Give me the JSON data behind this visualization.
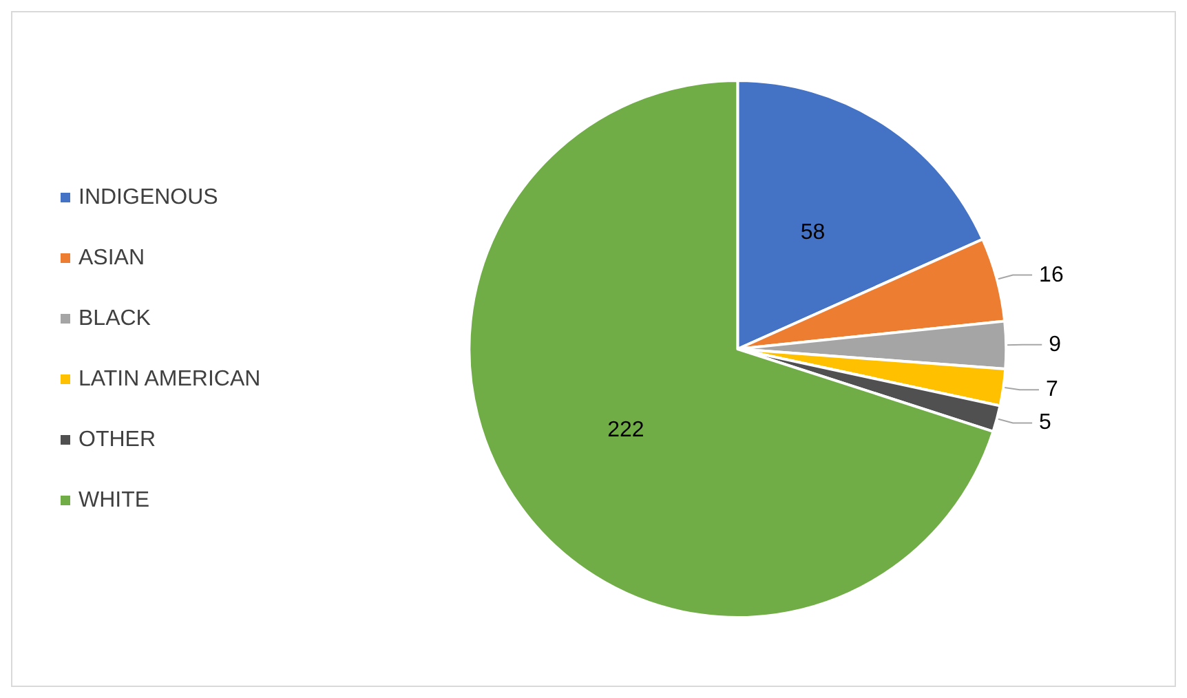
{
  "chart_data": {
    "type": "pie",
    "categories": [
      "INDIGENOUS",
      "ASIAN",
      "BLACK",
      "LATIN AMERICAN",
      "OTHER",
      "WHITE"
    ],
    "values": [
      58,
      16,
      9,
      7,
      5,
      222
    ],
    "colors": [
      "#4472c4",
      "#ed7d31",
      "#a5a5a5",
      "#ffc000",
      "#505050",
      "#70ad47"
    ],
    "data_labels": true,
    "legend": "left"
  }
}
